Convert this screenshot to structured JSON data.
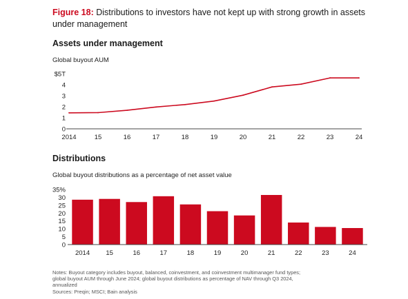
{
  "figure": {
    "label": "Figure 18:",
    "title": "Distributions to investors have not kept up with strong growth in assets under management"
  },
  "colors": {
    "accent": "#cc0a1f",
    "axis": "#444444"
  },
  "chart_data": [
    {
      "type": "line",
      "title": "Assets under management",
      "subtitle": "Global buyout AUM",
      "categories": [
        "2014",
        "15",
        "16",
        "17",
        "18",
        "19",
        "20",
        "21",
        "22",
        "23",
        "24"
      ],
      "values": [
        1.45,
        1.47,
        1.68,
        1.98,
        2.2,
        2.52,
        3.05,
        3.8,
        4.05,
        4.62,
        4.62
      ],
      "y_ticks": [
        "0",
        "1",
        "2",
        "3",
        "4",
        "$5T"
      ],
      "ylim": [
        0,
        5
      ],
      "grid": false,
      "color": "#cc0a1f"
    },
    {
      "type": "bar",
      "title": "Distributions",
      "subtitle": "Global buyout distributions as a percentage of net asset value",
      "categories": [
        "2014",
        "15",
        "16",
        "17",
        "18",
        "19",
        "20",
        "21",
        "22",
        "23",
        "24"
      ],
      "values": [
        28.5,
        29,
        27,
        30.7,
        25.5,
        21.2,
        18.5,
        31.5,
        14,
        11.2,
        10.5
      ],
      "y_ticks": [
        "0",
        "5",
        "10",
        "15",
        "20",
        "25",
        "30",
        "35%"
      ],
      "ylim": [
        0,
        35
      ],
      "grid": false,
      "color": "#cc0a1f"
    }
  ],
  "notes": {
    "line1": "Notes: Buyout category includes buyout, balanced, coinvestment, and coinvestment multimanager fund types;",
    "line2": "global buyout AUM through June 2024; global buyout distributions as percentage of NAV through Q3 2024,",
    "line3": "annualized",
    "sources": "Sources: Preqin; MSCI; Bain analysis"
  }
}
